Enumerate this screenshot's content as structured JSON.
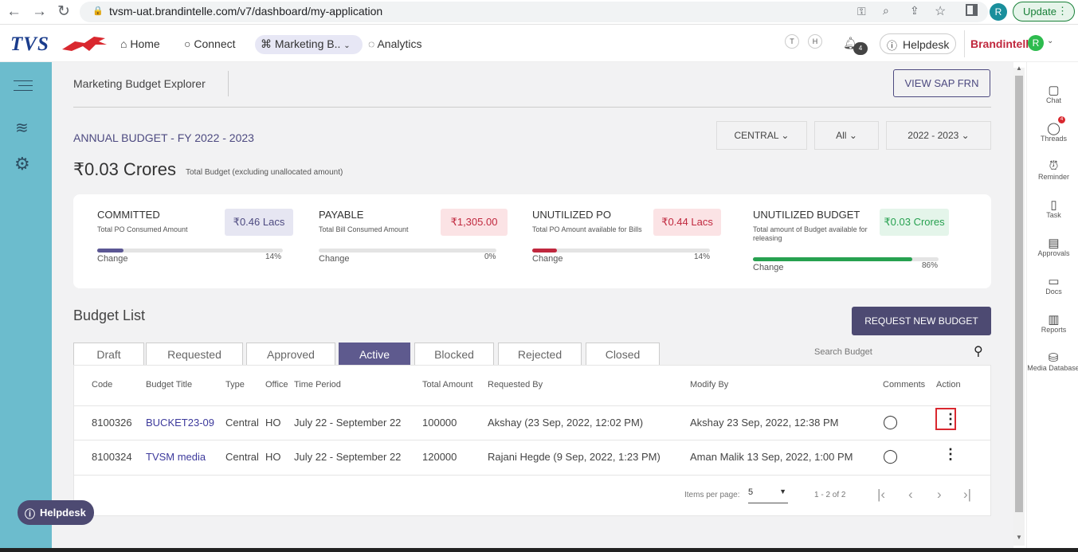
{
  "browser": {
    "url": "tvsm-uat.brandintelle.com/v7/dashboard/my-application",
    "profile_initial": "R",
    "update_label": "Update"
  },
  "header": {
    "logo": "TVS",
    "nav": [
      {
        "label": "Home"
      },
      {
        "label": "Connect"
      },
      {
        "label": "Marketing B.."
      },
      {
        "label": "Analytics"
      }
    ],
    "user_badges": [
      "T",
      "H"
    ],
    "notification_count": "4",
    "helpdesk_label": "Helpdesk",
    "brand": "Brandintellé",
    "avatar_initial": "R"
  },
  "page": {
    "title": "Marketing Budget Explorer",
    "view_sap_label": "VIEW SAP FRN",
    "annual_label": "ANNUAL BUDGET - FY 2022 - 2023",
    "total_value": "₹0.03 Crores",
    "total_caption": "Total Budget (excluding unallocated amount)",
    "filters": [
      "CENTRAL",
      "All",
      "2022 - 2023"
    ]
  },
  "stats": [
    {
      "title": "COMMITTED",
      "sub": "Total PO Consumed Amount",
      "value": "₹0.46 Lacs",
      "change_label": "Change",
      "pct": "14%",
      "fill": 0.14,
      "bar_color": "#5b5794",
      "val_bg": "#e6e6f2",
      "val_color": "#4d4a80"
    },
    {
      "title": "PAYABLE",
      "sub": "Total Bill Consumed Amount",
      "value": "₹1,305.00",
      "change_label": "Change",
      "pct": "0%",
      "fill": 0.0,
      "bar_color": "#c0283e",
      "val_bg": "#fbe3e5",
      "val_color": "#c0283e"
    },
    {
      "title": "UNUTILIZED PO",
      "sub": "Total PO Amount available for Bills",
      "value": "₹0.44 Lacs",
      "change_label": "Change",
      "pct": "14%",
      "fill": 0.14,
      "bar_color": "#c0283e",
      "val_bg": "#fbe3e5",
      "val_color": "#c0283e"
    },
    {
      "title": "UNUTILIZED BUDGET",
      "sub": "Total amount of Budget available for releasing",
      "value": "₹0.03 Crores",
      "change_label": "Change",
      "pct": "86%",
      "fill": 0.86,
      "bar_color": "#27a150",
      "val_bg": "#e4f5ea",
      "val_color": "#27a150"
    }
  ],
  "budget_list": {
    "title": "Budget List",
    "request_label": "REQUEST NEW BUDGET",
    "search_placeholder": "Search Budget",
    "tabs": [
      "Draft",
      "Requested",
      "Approved",
      "Active",
      "Blocked",
      "Rejected",
      "Closed"
    ],
    "active_tab": "Active",
    "columns": [
      "Code",
      "Budget Title",
      "Type",
      "Office",
      "Time Period",
      "Total Amount",
      "Requested By",
      "Modify By",
      "Comments",
      "Action"
    ],
    "rows": [
      {
        "code": "8100326",
        "title": "BUCKET23-09",
        "type": "Central",
        "office": "HO",
        "period": "July 22 - September 22",
        "amount": "100000",
        "requested_by": "Akshay (23 Sep, 2022, 12:02 PM)",
        "modify_by": "Akshay 23 Sep, 2022, 12:38 PM"
      },
      {
        "code": "8100324",
        "title": "TVSM media",
        "type": "Central",
        "office": "HO",
        "period": "July 22 - September 22",
        "amount": "120000",
        "requested_by": "Rajani Hegde (9 Sep, 2022, 1:23 PM)",
        "modify_by": "Aman Malik 13 Sep, 2022, 1:00 PM"
      }
    ],
    "items_per_page_label": "Items per page:",
    "items_per_page": "5",
    "range_label": "1 - 2 of 2"
  },
  "right_sidebar": [
    {
      "label": "Chat",
      "icon": "chat-icon"
    },
    {
      "label": "Threads",
      "icon": "threads-icon",
      "badge": "4"
    },
    {
      "label": "Reminder",
      "icon": "alarm-icon"
    },
    {
      "label": "Task",
      "icon": "clipboard-icon"
    },
    {
      "label": "Approvals",
      "icon": "document-icon"
    },
    {
      "label": "Docs",
      "icon": "folder-icon"
    },
    {
      "label": "Reports",
      "icon": "report-icon"
    },
    {
      "label": "Media Database",
      "icon": "database-icon"
    }
  ],
  "floating_helpdesk": "Helpdesk"
}
